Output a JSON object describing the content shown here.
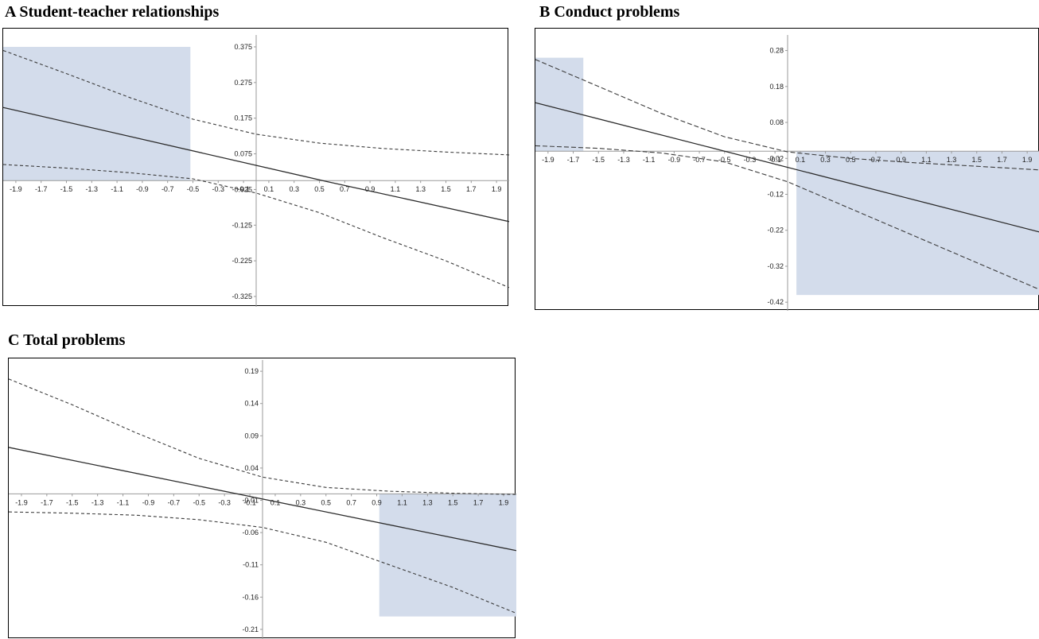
{
  "chart_data": [
    {
      "type": "line",
      "panel": "A",
      "title": "A Student-teacher relationships",
      "xlabel": "",
      "ylabel": "",
      "xlim": [
        -2.0,
        2.0
      ],
      "ylim": [
        -0.345,
        0.395
      ],
      "x_ticks": [
        "-1.9",
        "-1.7",
        "-1.5",
        "-1.3",
        "-1.1",
        "-0.9",
        "-0.7",
        "-0.5",
        "-0.3",
        "-0.1",
        "0.1",
        "0.3",
        "0.5",
        "0.7",
        "0.9",
        "1.1",
        "1.3",
        "1.5",
        "1.7",
        "1.9"
      ],
      "y_ticks": [
        "0.375",
        "0.275",
        "0.175",
        "0.075",
        "-0.025",
        "-0.125",
        "-0.225",
        "-0.325"
      ],
      "series": [
        {
          "role": "estimate",
          "style": "solid",
          "x": [
            -2.0,
            0.55,
            2.0
          ],
          "y": [
            0.205,
            -0.002,
            -0.115
          ]
        },
        {
          "role": "upper",
          "style": "dashed",
          "x": [
            -2.0,
            -1.5,
            -1.0,
            -0.5,
            0.0,
            0.5,
            1.0,
            1.5,
            2.0
          ],
          "y": [
            0.365,
            0.3,
            0.233,
            0.172,
            0.13,
            0.105,
            0.09,
            0.08,
            0.072
          ]
        },
        {
          "role": "lower",
          "style": "dashed",
          "x": [
            -2.0,
            -1.5,
            -1.0,
            -0.5,
            0.0,
            0.5,
            1.0,
            1.5,
            2.0
          ],
          "y": [
            0.045,
            0.035,
            0.022,
            0.005,
            -0.035,
            -0.09,
            -0.16,
            -0.225,
            -0.3
          ]
        }
      ],
      "shaded_regions": [
        {
          "x": [
            -2.0,
            -0.52
          ],
          "y": [
            0.0,
            0.375
          ]
        }
      ]
    },
    {
      "type": "line",
      "panel": "B",
      "title": "B Conduct problems",
      "xlabel": "",
      "ylabel": "",
      "xlim": [
        -2.0,
        2.0
      ],
      "ylim": [
        -0.435,
        0.31
      ],
      "x_ticks": [
        "-1.9",
        "-1.7",
        "-1.5",
        "-1.3",
        "-1.1",
        "-0.9",
        "-0.7",
        "-0.5",
        "-0.3",
        "-0.1",
        "0.1",
        "0.3",
        "0.5",
        "0.7",
        "0.9",
        "1.1",
        "1.3",
        "1.5",
        "1.7",
        "1.9"
      ],
      "x_tick_display": [
        "-1.9",
        "-1.7",
        "-1.5",
        "-1.3",
        "-1.1",
        "-0.9",
        "-0.7",
        "-0.5",
        "-0.3",
        "-0.1",
        "0.1",
        "0.3",
        "0.5",
        "0.7",
        "0.9",
        "1.1",
        "1.3",
        "1.5",
        "1.7",
        "1.9"
      ],
      "y_ticks": [
        "0.28",
        "0.18",
        "0.08",
        "-0.02",
        "-0.12",
        "-0.22",
        "-0.32",
        "-0.42"
      ],
      "series": [
        {
          "role": "estimate",
          "style": "solid",
          "x": [
            -2.0,
            -0.5,
            2.0
          ],
          "y": [
            0.135,
            0.0,
            -0.225
          ]
        },
        {
          "role": "upper",
          "style": "dashed",
          "x": [
            -2.0,
            -1.5,
            -1.0,
            -0.5,
            0.0,
            0.5,
            1.0,
            1.5,
            2.0
          ],
          "y": [
            0.255,
            0.18,
            0.105,
            0.04,
            -0.002,
            -0.02,
            -0.032,
            -0.042,
            -0.052
          ]
        },
        {
          "role": "lower",
          "style": "dashed",
          "x": [
            -2.0,
            -1.5,
            -1.0,
            -0.5,
            0.0,
            0.5,
            1.0,
            1.5,
            2.0
          ],
          "y": [
            0.015,
            0.008,
            -0.005,
            -0.03,
            -0.085,
            -0.16,
            -0.235,
            -0.31,
            -0.385
          ]
        }
      ],
      "shaded_regions": [
        {
          "x": [
            -2.0,
            -1.62
          ],
          "y": [
            0.0,
            0.26
          ]
        },
        {
          "x": [
            0.07,
            2.0
          ],
          "y": [
            -0.4,
            0.0
          ]
        }
      ]
    },
    {
      "type": "line",
      "panel": "C",
      "title": "C Total problems",
      "xlabel": "",
      "ylabel": "",
      "xlim": [
        -2.0,
        2.0
      ],
      "ylim": [
        -0.22,
        0.2
      ],
      "x_ticks": [
        "-1.9",
        "-1.7",
        "-1.5",
        "-1.3",
        "-1.1",
        "-0.9",
        "-0.7",
        "-0.5",
        "-0.3",
        "-0.1",
        "0.1",
        "0.3",
        "0.5",
        "0.7",
        "0.9",
        "1.1",
        "1.3",
        "1.5",
        "1.7",
        "1.9"
      ],
      "y_ticks": [
        "0.19",
        "0.14",
        "0.09",
        "0.04",
        "-0.01",
        "-0.06",
        "-0.11",
        "-0.16",
        "-0.21"
      ],
      "series": [
        {
          "role": "estimate",
          "style": "solid",
          "x": [
            -2.0,
            -0.2,
            2.0
          ],
          "y": [
            0.072,
            0.0,
            -0.088
          ]
        },
        {
          "role": "upper",
          "style": "dashed",
          "x": [
            -2.0,
            -1.5,
            -1.0,
            -0.5,
            0.0,
            0.5,
            1.0,
            1.5,
            2.0
          ],
          "y": [
            0.178,
            0.138,
            0.095,
            0.055,
            0.026,
            0.01,
            0.004,
            0.001,
            -0.001
          ]
        },
        {
          "role": "lower",
          "style": "dashed",
          "x": [
            -2.0,
            -1.5,
            -1.0,
            -0.5,
            0.0,
            0.5,
            1.0,
            1.5,
            2.0
          ],
          "y": [
            -0.028,
            -0.03,
            -0.033,
            -0.04,
            -0.052,
            -0.075,
            -0.11,
            -0.145,
            -0.185
          ]
        }
      ],
      "shaded_regions": [
        {
          "x": [
            0.92,
            2.0
          ],
          "y": [
            -0.19,
            0.0
          ]
        }
      ]
    }
  ],
  "colors": {
    "shade": "#d3dceb",
    "axis": "#9a9a9a",
    "line": "#2b2b2b",
    "dashed": "#3c3c3c",
    "frame": "#000000"
  }
}
